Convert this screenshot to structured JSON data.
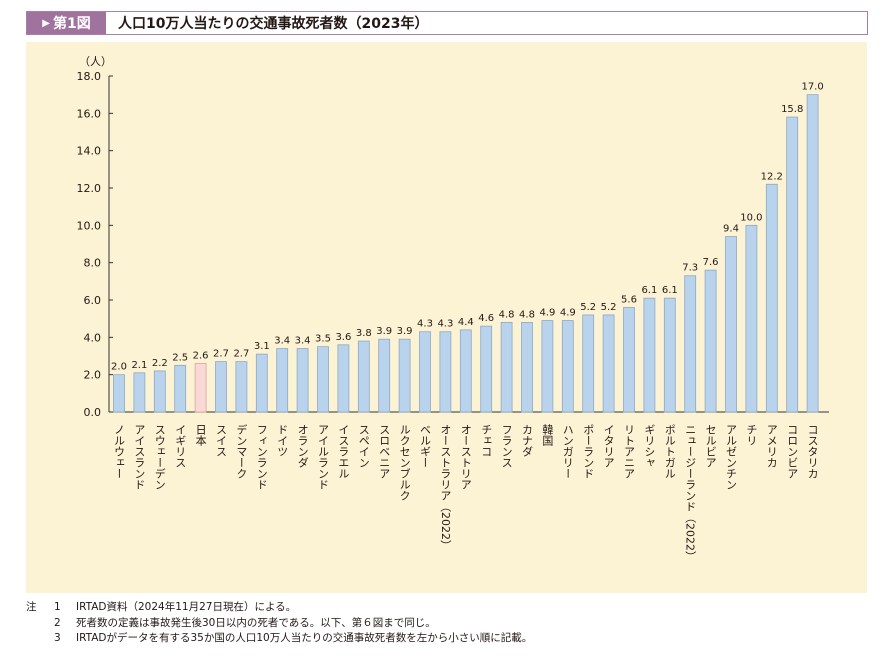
{
  "figure": {
    "badge_label": "第1図",
    "title": "人口10万人当たりの交通事故死者数（2023年）"
  },
  "chart_data": {
    "type": "bar",
    "title": "人口10万人当たりの交通事故死者数（2023年）",
    "ylabel": "（人）",
    "xlabel": "",
    "ylim": [
      0,
      18
    ],
    "yticks": [
      "0.0",
      "2.0",
      "4.0",
      "6.0",
      "8.0",
      "10.0",
      "12.0",
      "14.0",
      "16.0",
      "18.0"
    ],
    "grid": false,
    "categories": [
      "ノルウェー",
      "アイスランド",
      "スウェーデン",
      "イギリス",
      "日本",
      "スイス",
      "デンマーク",
      "フィンランド",
      "ドイツ",
      "オランダ",
      "アイルランド",
      "イスラエル",
      "スペイン",
      "スロベニア",
      "ルクセンブルク",
      "ベルギー",
      "オーストラリア（2022）",
      "オーストリア",
      "チェコ",
      "フランス",
      "カナダ",
      "韓国",
      "ハンガリー",
      "ポーランド",
      "イタリア",
      "リトアニア",
      "ギリシャ",
      "ポルトガル",
      "ニュージーランド（2022）",
      "セルビア",
      "アルゼンチン",
      "チリ",
      "アメリカ",
      "コロンビア",
      "コスタリカ"
    ],
    "values": [
      2.0,
      2.1,
      2.2,
      2.5,
      2.6,
      2.7,
      2.7,
      3.1,
      3.4,
      3.4,
      3.5,
      3.6,
      3.8,
      3.9,
      3.9,
      4.3,
      4.3,
      4.4,
      4.6,
      4.8,
      4.8,
      4.9,
      4.9,
      5.2,
      5.2,
      5.6,
      6.1,
      6.1,
      7.3,
      7.6,
      9.4,
      10.0,
      12.2,
      15.8,
      17.0
    ],
    "value_labels": [
      "2.0",
      "2.1",
      "2.2",
      "2.5",
      "2.6",
      "2.7",
      "2.7",
      "3.1",
      "3.4",
      "3.4",
      "3.5",
      "3.6",
      "3.8",
      "3.9",
      "3.9",
      "4.3",
      "4.3",
      "4.4",
      "4.6",
      "4.8",
      "4.8",
      "4.9",
      "4.9",
      "5.2",
      "5.2",
      "5.6",
      "6.1",
      "6.1",
      "7.3",
      "7.6",
      "9.4",
      "10.0",
      "12.2",
      "15.8",
      "17.0"
    ],
    "highlight": "日本",
    "colors": {
      "bar": "#b9d3ec",
      "bar_stroke": "#8ea9c6",
      "highlight": "#f9d9d6",
      "highlight_stroke": "#d9a3a0",
      "axis": "#333333"
    }
  },
  "notes": {
    "label": "注",
    "items": [
      {
        "num": "1",
        "text": "IRTAD資料（2024年11月27日現在）による。"
      },
      {
        "num": "2",
        "text": "死者数の定義は事故発生後30日以内の死者である。以下、第６図まで同じ。"
      },
      {
        "num": "3",
        "text": "IRTADがデータを有する35か国の人口10万人当たりの交通事故死者数を左から小さい順に記載。"
      }
    ]
  }
}
